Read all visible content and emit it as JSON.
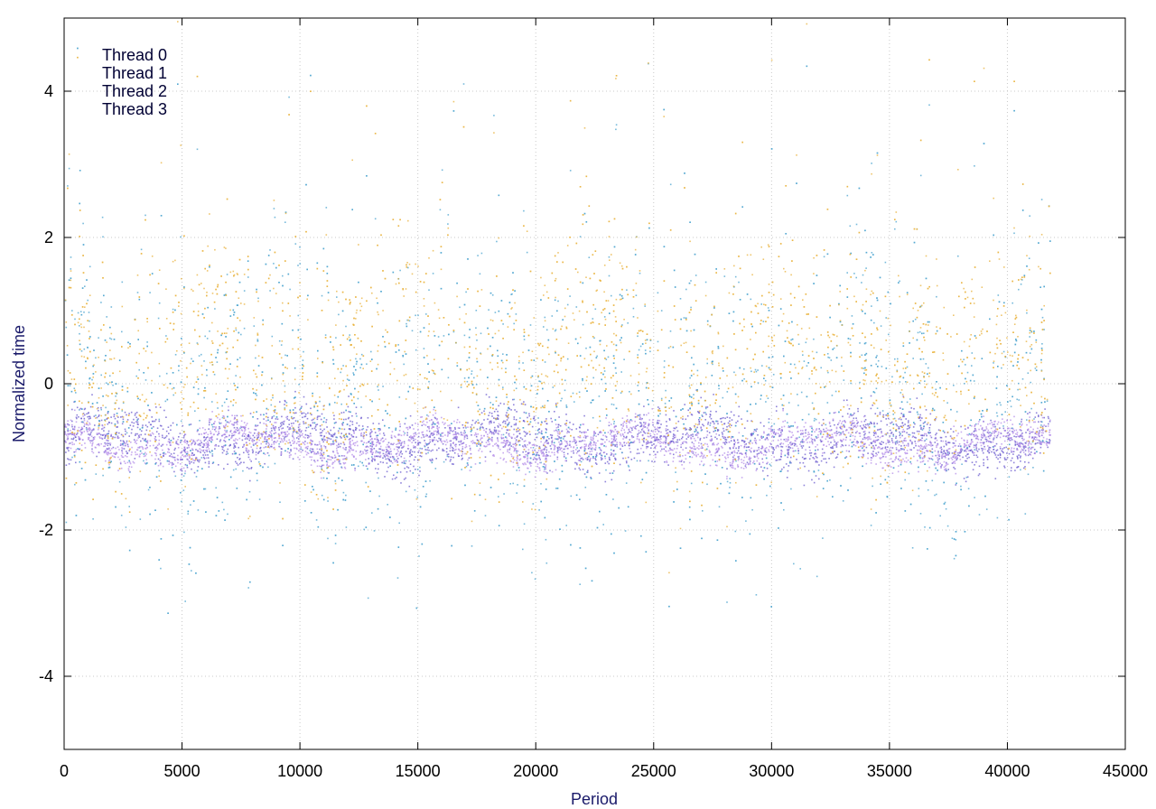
{
  "chart_data": {
    "type": "scatter",
    "title": "",
    "xlabel": "Period",
    "ylabel": "Normalized time",
    "xlim": [
      0,
      45000
    ],
    "ylim": [
      -5,
      5
    ],
    "x_ticks": [
      0,
      5000,
      10000,
      15000,
      20000,
      25000,
      30000,
      35000,
      40000,
      45000
    ],
    "y_ticks": [
      -4,
      -2,
      0,
      2,
      4
    ],
    "grid": true,
    "legend_position": "top-left",
    "x_data_max": 41800,
    "series": [
      {
        "name": "Thread 0",
        "color": "#6a5acd",
        "baseline": -0.75,
        "spread": 0.18
      },
      {
        "name": "Thread 1",
        "color": "#4aa3cf",
        "baseline": -0.2,
        "spread": 1.0
      },
      {
        "name": "Thread 2",
        "color": "#b48ee8",
        "baseline": -0.8,
        "spread": 0.12
      },
      {
        "name": "Thread 3",
        "color": "#e8b23c",
        "baseline": 0.3,
        "spread": 0.8
      }
    ]
  }
}
